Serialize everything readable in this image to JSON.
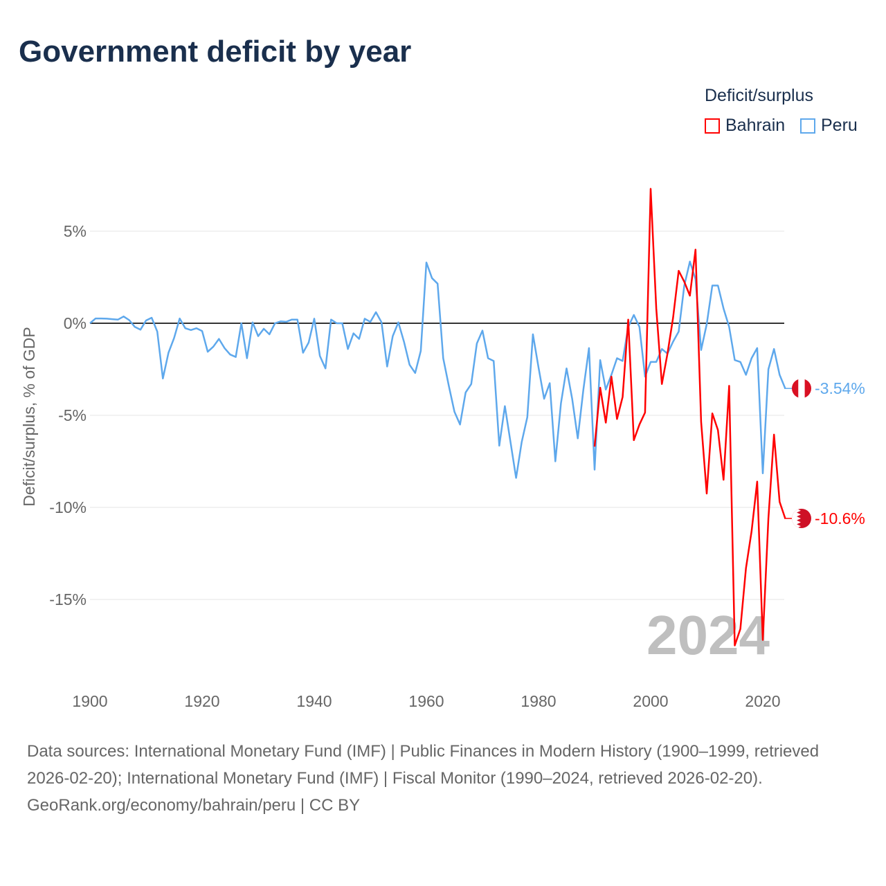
{
  "title": "Government deficit by year",
  "legend": {
    "title": "Deficit/surplus",
    "items": [
      {
        "name": "Bahrain",
        "color": "#ff0000"
      },
      {
        "name": "Peru",
        "color": "#5ea8ec"
      }
    ]
  },
  "footer": {
    "sources": "Data sources: International Monetary Fund (IMF) | Public Finances in Modern History (1900–1999, retrieved 2026-02-20); International Monetary Fund (IMF) | Fiscal Monitor (1990–2024, retrieved 2026-02-20).",
    "credit": "GeoRank.org/economy/bahrain/peru | CC BY"
  },
  "chart_data": {
    "type": "line",
    "title": "Government deficit by year",
    "xlabel": "",
    "ylabel": "Deficit/surplus, % of GDP",
    "xlim": [
      1900,
      2024
    ],
    "ylim": [
      -18,
      7.5
    ],
    "xticks": [
      1900,
      1920,
      1940,
      1960,
      1980,
      2000,
      2020
    ],
    "yticks": [
      {
        "v": 5,
        "label": "5%"
      },
      {
        "v": 0,
        "label": "0%"
      },
      {
        "v": -5,
        "label": "-5%"
      },
      {
        "v": -10,
        "label": "-10%"
      },
      {
        "v": -15,
        "label": "-15%"
      }
    ],
    "year_watermark": "2024",
    "legend_position": "top-right",
    "series": [
      {
        "name": "Peru",
        "color": "#5ea8ec",
        "end_label": "-3.54%",
        "start": 1900,
        "values": [
          0,
          0.26,
          0.26,
          0.25,
          0.22,
          0.2,
          0.37,
          0.17,
          -0.2,
          -0.35,
          0.15,
          0.3,
          -0.45,
          -3.0,
          -1.6,
          -0.8,
          0.26,
          -0.27,
          -0.37,
          -0.27,
          -0.42,
          -1.55,
          -1.27,
          -0.85,
          -1.35,
          -1.7,
          -1.83,
          0,
          -1.9,
          0.05,
          -0.7,
          -0.3,
          -0.6,
          0,
          0.1,
          0.08,
          0.2,
          0.2,
          -1.6,
          -1.05,
          0.25,
          -1.77,
          -2.45,
          0.2,
          0,
          0,
          -1.4,
          -0.55,
          -0.85,
          0.25,
          0.07,
          0.6,
          0.05,
          -2.35,
          -0.7,
          0.05,
          -1.0,
          -2.25,
          -2.7,
          -1.5,
          3.3,
          2.45,
          2.15,
          -1.9,
          -3.4,
          -4.8,
          -5.5,
          -3.76,
          -3.3,
          -1.1,
          -0.4,
          -1.9,
          -2.05,
          -6.65,
          -4.5,
          -6.45,
          -8.4,
          -6.45,
          -5.1,
          -0.6,
          -2.4,
          -4.1,
          -3.25,
          -7.5,
          -4.35,
          -2.45,
          -4.1,
          -6.25,
          -3.6,
          -1.35,
          -7.95,
          -2.0,
          -3.6,
          -2.8,
          -1.9,
          -2.05,
          -0.2,
          0.45,
          -0.2,
          -2.9,
          -2.1,
          -2.1,
          -1.4,
          -1.65,
          -1.0,
          -0.45,
          2.05,
          3.35,
          2.4,
          -1.45,
          -0.05,
          2.05,
          2.05,
          0.8,
          -0.2,
          -2.0,
          -2.1,
          -2.8,
          -1.9,
          -1.35,
          -8.15,
          -2.5,
          -1.4,
          -2.8,
          -3.54
        ]
      },
      {
        "name": "Bahrain",
        "color": "#ff0000",
        "end_label": "-10.6%",
        "start": 1990,
        "values": [
          -6.7,
          -3.5,
          -5.4,
          -2.9,
          -5.2,
          -4.0,
          0.2,
          -6.35,
          -5.5,
          -4.85,
          7.3,
          0.8,
          -3.3,
          -1.65,
          0.3,
          2.85,
          2.25,
          1.5,
          4.0,
          -5.35,
          -9.25,
          -4.9,
          -5.8,
          -8.5,
          -3.4,
          -17.5,
          -16.6,
          -13.3,
          -11.3,
          -8.6,
          -17.2,
          -10.6,
          -6.05,
          -9.7,
          -10.6
        ]
      }
    ]
  }
}
